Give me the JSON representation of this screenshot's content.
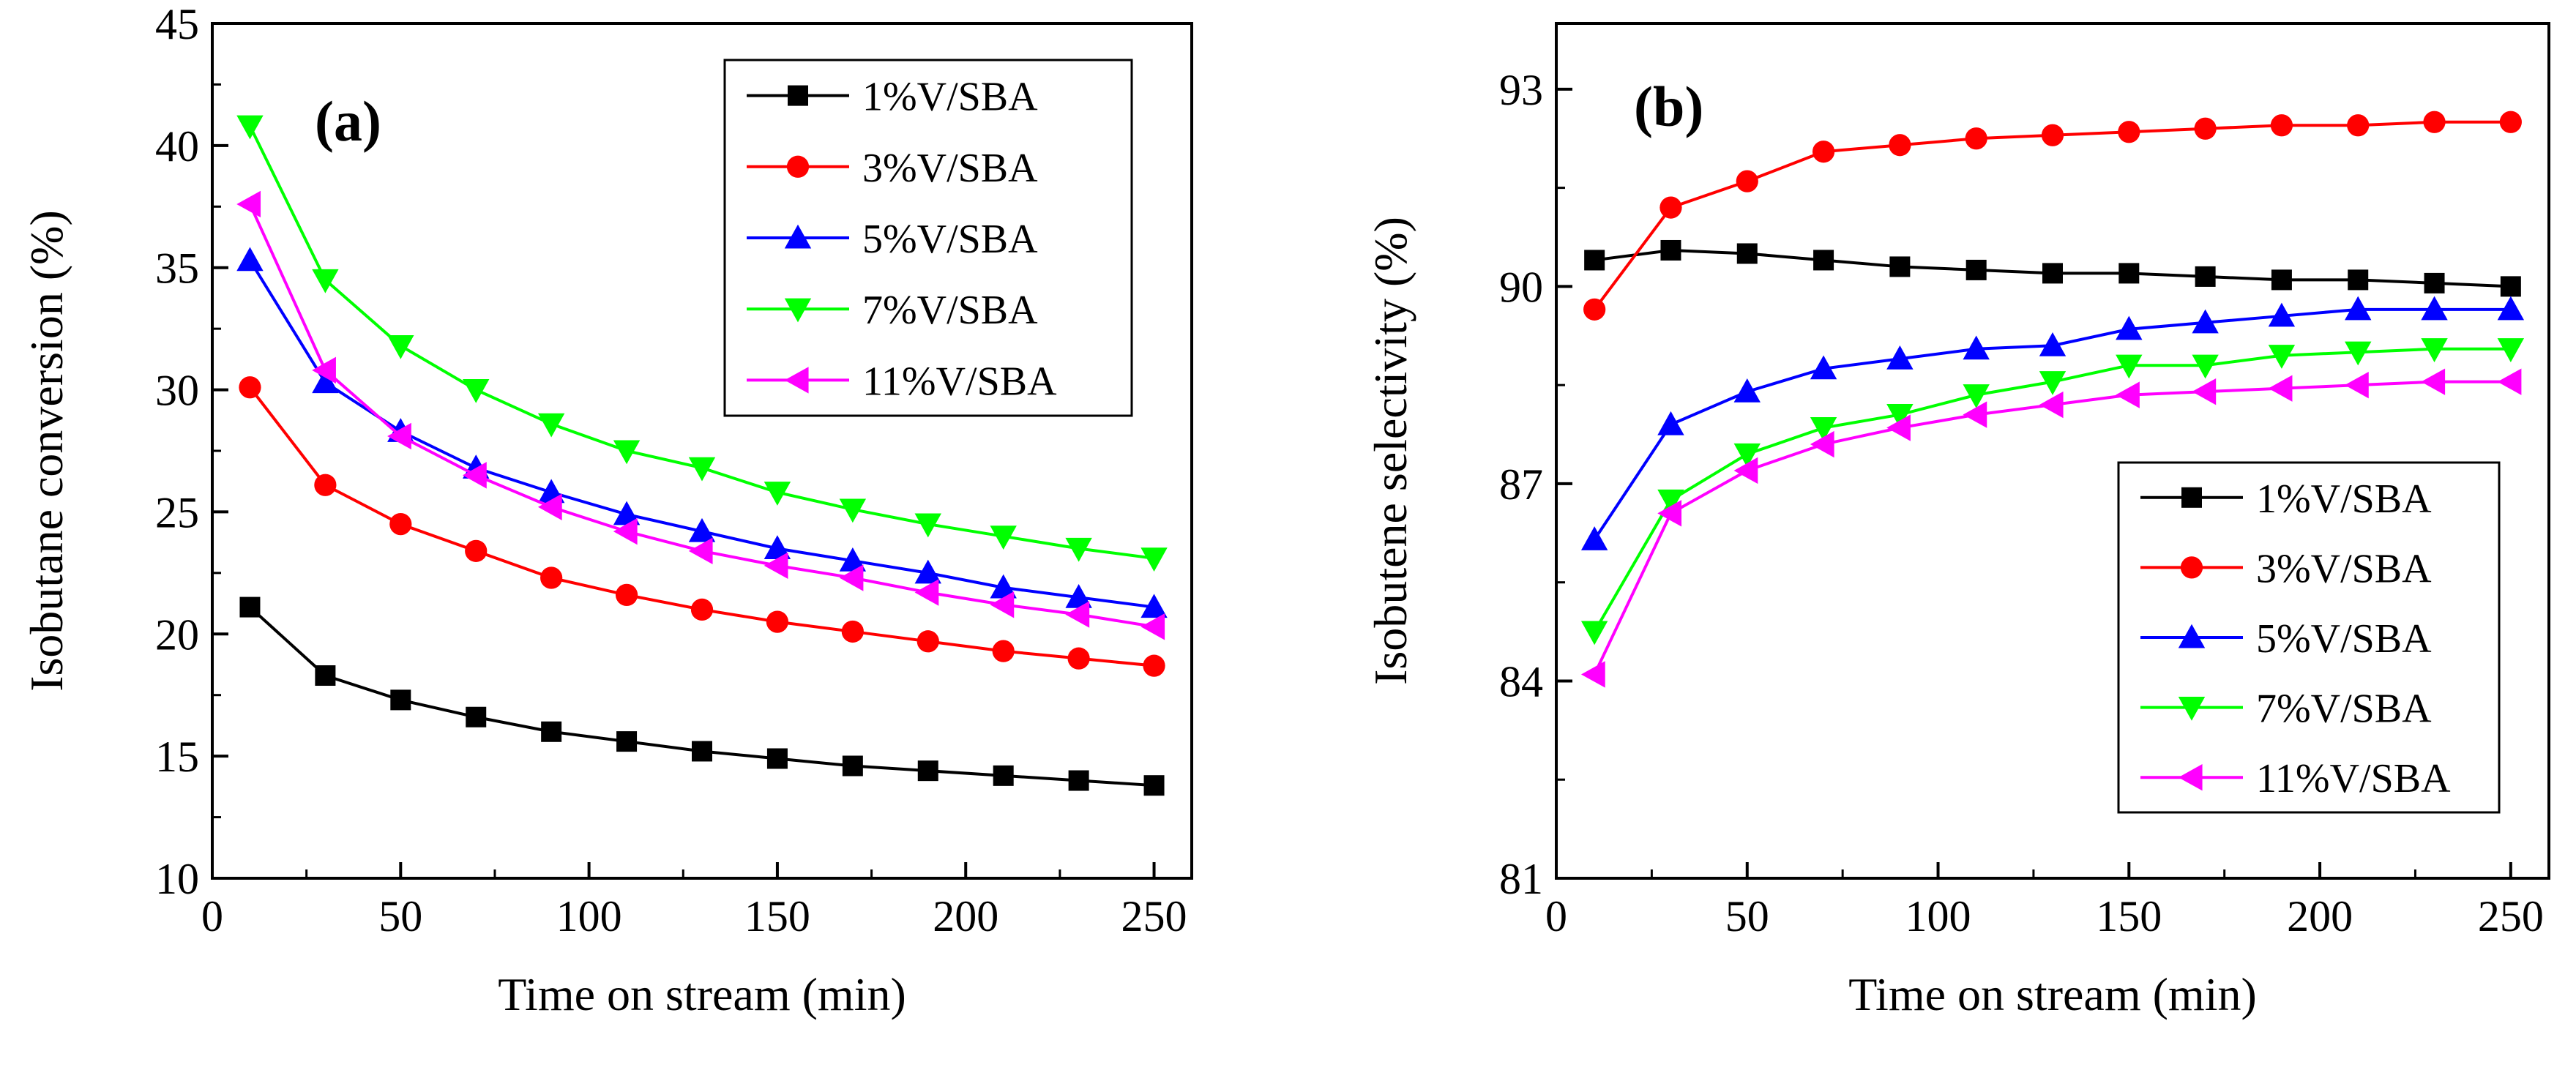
{
  "colors": {
    "1%V/SBA": "#000000",
    "3%V/SBA": "#ff0000",
    "5%V/SBA": "#0000ff",
    "7%V/SBA": "#00ff00",
    "11%V/SBA": "#ff00ff"
  },
  "chart_data": [
    {
      "type": "line",
      "panel": "(a)",
      "xlabel": "Time on stream (min)",
      "ylabel": "Isobutane conversion (%)",
      "xlim": [
        0,
        260
      ],
      "ylim": [
        10,
        45
      ],
      "xticks": [
        0,
        50,
        100,
        150,
        200,
        250
      ],
      "yticks": [
        10,
        15,
        20,
        25,
        30,
        35,
        40,
        45
      ],
      "x": [
        10,
        30,
        50,
        70,
        90,
        110,
        130,
        150,
        170,
        190,
        210,
        230,
        250
      ],
      "legend_position": "top-right",
      "series": [
        {
          "name": "1%V/SBA",
          "marker": "square",
          "values": [
            21.1,
            18.3,
            17.3,
            16.6,
            16.0,
            15.6,
            15.2,
            14.9,
            14.6,
            14.4,
            14.2,
            14.0,
            13.8
          ]
        },
        {
          "name": "3%V/SBA",
          "marker": "circle",
          "values": [
            30.1,
            26.1,
            24.5,
            23.4,
            22.3,
            21.6,
            21.0,
            20.5,
            20.1,
            19.7,
            19.3,
            19.0,
            18.7
          ]
        },
        {
          "name": "5%V/SBA",
          "marker": "triangle-up",
          "values": [
            35.3,
            30.3,
            28.3,
            26.8,
            25.8,
            24.9,
            24.2,
            23.5,
            23.0,
            22.5,
            21.9,
            21.5,
            21.1
          ]
        },
        {
          "name": "7%V/SBA",
          "marker": "triangle-down",
          "values": [
            40.8,
            34.5,
            31.8,
            30.0,
            28.6,
            27.5,
            26.8,
            25.8,
            25.1,
            24.5,
            24.0,
            23.5,
            23.1
          ]
        },
        {
          "name": "11%V/SBA",
          "marker": "triangle-left",
          "values": [
            37.6,
            30.8,
            28.1,
            26.5,
            25.2,
            24.2,
            23.4,
            22.8,
            22.3,
            21.7,
            21.2,
            20.8,
            20.3
          ]
        }
      ]
    },
    {
      "type": "line",
      "panel": "(b)",
      "xlabel": "Time on stream (min)",
      "ylabel": "Isobutene selectivity (%)",
      "xlim": [
        0,
        260
      ],
      "ylim": [
        81,
        94
      ],
      "xticks": [
        0,
        50,
        100,
        150,
        200,
        250
      ],
      "yticks": [
        81,
        84,
        87,
        90,
        93
      ],
      "x": [
        10,
        30,
        50,
        70,
        90,
        110,
        130,
        150,
        170,
        190,
        210,
        230,
        250
      ],
      "legend_position": "bottom-right",
      "series": [
        {
          "name": "1%V/SBA",
          "marker": "square",
          "values": [
            90.4,
            90.55,
            90.5,
            90.4,
            90.3,
            90.25,
            90.2,
            90.2,
            90.15,
            90.1,
            90.1,
            90.05,
            90.0
          ]
        },
        {
          "name": "3%V/SBA",
          "marker": "circle",
          "values": [
            89.65,
            91.2,
            91.6,
            92.05,
            92.15,
            92.25,
            92.3,
            92.35,
            92.4,
            92.45,
            92.45,
            92.5,
            92.5
          ]
        },
        {
          "name": "5%V/SBA",
          "marker": "triangle-up",
          "values": [
            86.15,
            87.9,
            88.4,
            88.75,
            88.9,
            89.05,
            89.1,
            89.35,
            89.45,
            89.55,
            89.65,
            89.65,
            89.65
          ]
        },
        {
          "name": "7%V/SBA",
          "marker": "triangle-down",
          "values": [
            84.75,
            86.75,
            87.45,
            87.85,
            88.05,
            88.35,
            88.55,
            88.8,
            88.8,
            88.95,
            89.0,
            89.05,
            89.05
          ]
        },
        {
          "name": "11%V/SBA",
          "marker": "triangle-left",
          "values": [
            84.1,
            86.55,
            87.2,
            87.6,
            87.85,
            88.05,
            88.2,
            88.35,
            88.4,
            88.45,
            88.5,
            88.55,
            88.55
          ]
        }
      ]
    }
  ]
}
